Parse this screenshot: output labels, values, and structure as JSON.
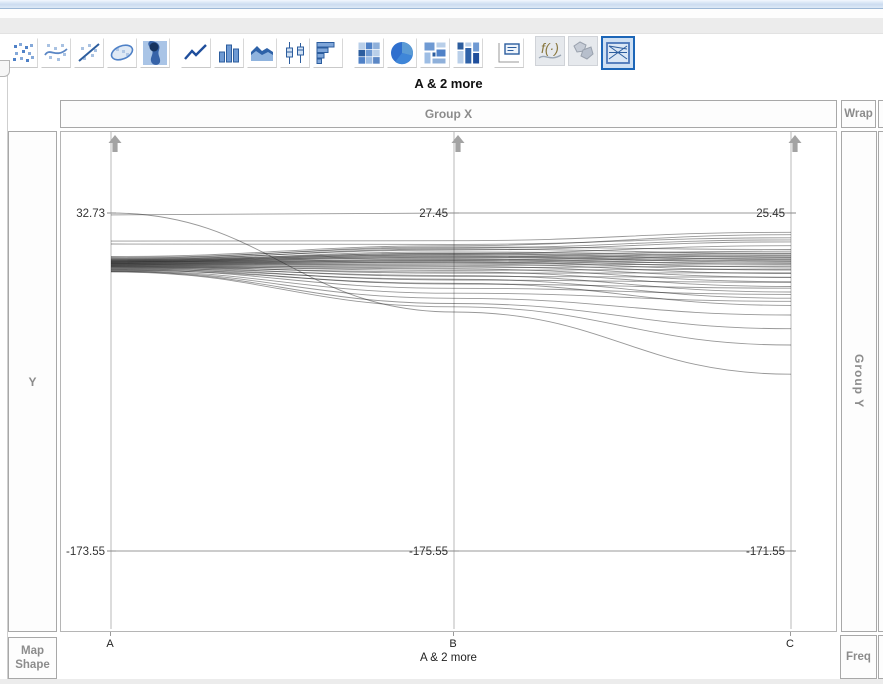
{
  "toolbar": {
    "icons": [
      {
        "name": "points",
        "selected": false
      },
      {
        "name": "smoother",
        "selected": false
      },
      {
        "name": "line-of-fit",
        "selected": false
      },
      {
        "name": "ellipse",
        "selected": false
      },
      {
        "name": "contour",
        "selected": false
      },
      {
        "name": "line",
        "selected": false
      },
      {
        "name": "bar",
        "selected": false
      },
      {
        "name": "area",
        "selected": false
      },
      {
        "name": "box-plot",
        "selected": false
      },
      {
        "name": "histogram",
        "selected": false
      },
      {
        "name": "heatmap",
        "selected": false
      },
      {
        "name": "pie",
        "selected": false
      },
      {
        "name": "treemap",
        "selected": false
      },
      {
        "name": "mosaic",
        "selected": false
      },
      {
        "name": "caption-box",
        "selected": false
      },
      {
        "name": "formula",
        "selected": false
      },
      {
        "name": "map-shapes",
        "selected": false
      },
      {
        "name": "parallel",
        "selected": true
      }
    ]
  },
  "chart": {
    "title": "A & 2 more",
    "zones": {
      "group_x": "Group X",
      "wrap": "Wrap",
      "y": "Y",
      "group_y": "Group Y",
      "map_shape": "Map Shape",
      "freq": "Freq"
    },
    "x_axis": {
      "title": "A & 2 more"
    }
  },
  "chart_data": {
    "type": "parallel-coordinates",
    "title": "A & 2 more",
    "axes": [
      {
        "label": "A",
        "max": 32.73,
        "min": -173.55,
        "max_label": "32.73",
        "min_label": "-173.55"
      },
      {
        "label": "B",
        "max": 27.45,
        "min": -175.55,
        "max_label": "27.45",
        "min_label": "-175.55"
      },
      {
        "label": "C",
        "max": 25.45,
        "min": -171.55,
        "max_label": "25.45",
        "min_label": "-171.55"
      }
    ],
    "legend": "none",
    "line_color": "#1a1a1a",
    "series": [
      [
        32.73,
        -32.0,
        -68.5
      ],
      [
        31.6,
        27.45,
        25.45
      ],
      [
        15.6,
        10.8,
        14.2
      ],
      [
        13.8,
        8.6,
        11.0
      ],
      [
        6.2,
        7.8,
        12.8
      ],
      [
        5.6,
        6.5,
        9.8
      ],
      [
        5.1,
        7.1,
        4.2
      ],
      [
        4.8,
        5.2,
        8.6
      ],
      [
        4.5,
        3.1,
        6.4
      ],
      [
        4.2,
        5.8,
        1.9
      ],
      [
        4.0,
        2.2,
        3.2
      ],
      [
        3.8,
        4.1,
        0.8
      ],
      [
        3.6,
        1.2,
        2.1
      ],
      [
        3.4,
        3.3,
        -0.4
      ],
      [
        3.2,
        0.4,
        1.0
      ],
      [
        3.0,
        2.5,
        -1.5
      ],
      [
        2.8,
        -0.6,
        0.2
      ],
      [
        2.7,
        1.7,
        -2.4
      ],
      [
        2.5,
        -1.4,
        -0.8
      ],
      [
        2.3,
        0.9,
        -3.3
      ],
      [
        2.1,
        -2.2,
        -1.8
      ],
      [
        2.0,
        -0.2,
        -4.5
      ],
      [
        1.8,
        -3.1,
        -2.9
      ],
      [
        1.6,
        -1.1,
        -6.0
      ],
      [
        1.4,
        -4.2,
        -4.0
      ],
      [
        1.2,
        -2.0,
        -7.8
      ],
      [
        1.0,
        -5.5,
        -5.4
      ],
      [
        0.8,
        -3.2,
        -9.8
      ],
      [
        0.6,
        -7.0,
        -7.2
      ],
      [
        0.4,
        -4.6,
        -12.0
      ],
      [
        0.2,
        -8.7,
        -9.4
      ],
      [
        0.0,
        -6.2,
        -14.6
      ],
      [
        -0.2,
        -10.6,
        -12.0
      ],
      [
        -0.4,
        -8.0,
        -17.4
      ],
      [
        -0.7,
        -12.8,
        -15.0
      ],
      [
        -1.0,
        -10.0,
        -20.6
      ],
      [
        -1.3,
        -15.2,
        -18.4
      ],
      [
        -1.6,
        -12.3,
        -24.2
      ],
      [
        -1.9,
        -17.8,
        -22.0
      ],
      [
        -2.2,
        -14.8,
        -28.4
      ],
      [
        -2.5,
        -20.7,
        -26.0
      ],
      [
        -2.8,
        -23.8,
        -34.0
      ],
      [
        -3.0,
        -26.9,
        -42.0
      ],
      [
        -3.2,
        -28.9,
        -51.5
      ],
      [
        -173.55,
        -175.55,
        -171.55
      ]
    ]
  },
  "colors": {
    "accent_blue": "#1c66b8",
    "zone_label_gray": "#8c8c8c",
    "axis_line_gray": "#b8b8b8",
    "arrow_gray": "#a3a3a3"
  }
}
